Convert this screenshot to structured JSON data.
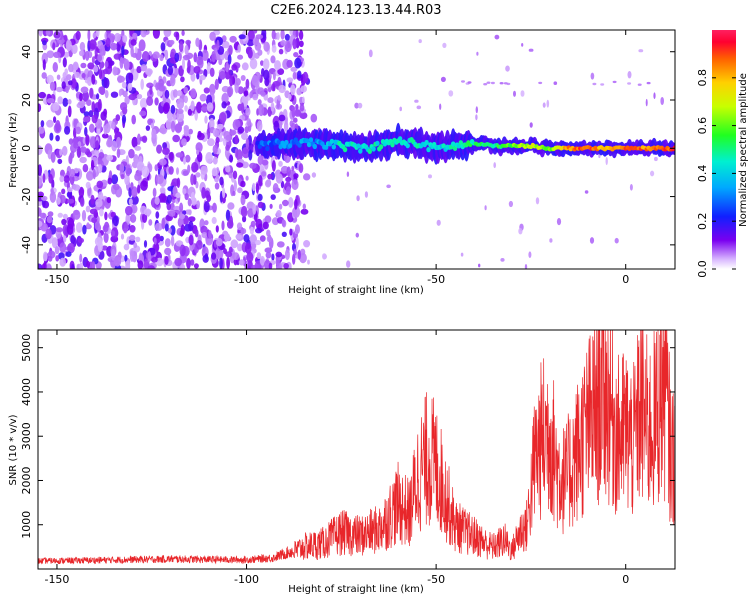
{
  "title": "C2E6.2024.123.13.44.R03",
  "colors": {
    "snr_line": "#e8262a",
    "spectrum_low": "#6a00e0",
    "spectrum_mid": "#00e8ff",
    "spectrum_high": "#ff2050"
  },
  "chart_data": [
    {
      "type": "heatmap",
      "title": "",
      "xlabel": "Height of straight line (km)",
      "ylabel": "Frequency (Hz)",
      "xlim": [
        -155,
        13
      ],
      "ylim": [
        -50,
        49
      ],
      "xticks": [
        -150,
        -100,
        -50,
        0
      ],
      "yticks": [
        -40,
        -20,
        0,
        20,
        40
      ],
      "colorbar": {
        "label": "Normalized spectral amplitude",
        "range": [
          0,
          1
        ],
        "ticks": [
          0.0,
          0.2,
          0.4,
          0.6,
          0.8
        ],
        "colormap": "rainbow (white-purple-blue-cyan-green-yellow-orange-red-magenta)"
      },
      "features": {
        "noise_region_x": [
          -155,
          -85
        ],
        "signal_start_x": -97,
        "signal_center_freq_hz": 0,
        "signal_track": [
          {
            "x": -97,
            "freq": 1,
            "amplitude": 0.25
          },
          {
            "x": -90,
            "freq": 2,
            "amplitude": 0.3
          },
          {
            "x": -80,
            "freq": 2,
            "amplitude": 0.35
          },
          {
            "x": -75,
            "freq": 1,
            "amplitude": 0.45
          },
          {
            "x": -68,
            "freq": 0,
            "amplitude": 0.45
          },
          {
            "x": -60,
            "freq": 3,
            "amplitude": 0.45
          },
          {
            "x": -55,
            "freq": 2,
            "amplitude": 0.45
          },
          {
            "x": -50,
            "freq": 0,
            "amplitude": 0.4
          },
          {
            "x": -45,
            "freq": 1,
            "amplitude": 0.45
          },
          {
            "x": -40,
            "freq": 2,
            "amplitude": 0.5
          },
          {
            "x": -35,
            "freq": 1,
            "amplitude": 0.5
          },
          {
            "x": -30,
            "freq": 1,
            "amplitude": 0.6
          },
          {
            "x": -25,
            "freq": 1,
            "amplitude": 0.7
          },
          {
            "x": -20,
            "freq": 0,
            "amplitude": 0.6
          },
          {
            "x": -15,
            "freq": 0,
            "amplitude": 0.85
          },
          {
            "x": -10,
            "freq": 0,
            "amplitude": 0.9
          },
          {
            "x": -5,
            "freq": 0,
            "amplitude": 0.75
          },
          {
            "x": 0,
            "freq": 0,
            "amplitude": 0.9
          },
          {
            "x": 5,
            "freq": 0,
            "amplitude": 0.85
          },
          {
            "x": 12,
            "freq": 0,
            "amplitude": 0.9
          }
        ],
        "weak_line_freq_hz": 27
      }
    },
    {
      "type": "line",
      "title": "",
      "xlabel": "Height of straight line (km)",
      "ylabel": "SNR (10 * v/v)",
      "xlim": [
        -155,
        13
      ],
      "ylim": [
        0,
        5400
      ],
      "xticks": [
        -150,
        -100,
        -50,
        0
      ],
      "yticks": [
        1000,
        2000,
        3000,
        4000,
        5000
      ],
      "series": [
        {
          "color": "#e8262a",
          "x": [
            -155,
            -140,
            -120,
            -100,
            -93,
            -88,
            -85,
            -80,
            -75,
            -70,
            -65,
            -62,
            -60,
            -57,
            -55,
            -52,
            -50,
            -48,
            -45,
            -42,
            -40,
            -37,
            -35,
            -32,
            -30,
            -28,
            -26,
            -24,
            -22,
            -20,
            -18,
            -16,
            -14,
            -12,
            -10,
            -8,
            -6,
            -4,
            -2,
            0,
            2,
            4,
            6,
            8,
            10,
            12
          ],
          "y": [
            200,
            220,
            250,
            230,
            280,
            450,
            600,
            700,
            1000,
            900,
            1100,
            1500,
            1800,
            1500,
            2500,
            3100,
            2800,
            2200,
            1200,
            1000,
            900,
            700,
            600,
            800,
            500,
            1000,
            1200,
            3000,
            3600,
            3800,
            2700,
            2400,
            2900,
            3400,
            3900,
            4300,
            5100,
            4400,
            3600,
            3800,
            3400,
            4500,
            3800,
            4100,
            5300,
            3100
          ]
        }
      ]
    }
  ]
}
